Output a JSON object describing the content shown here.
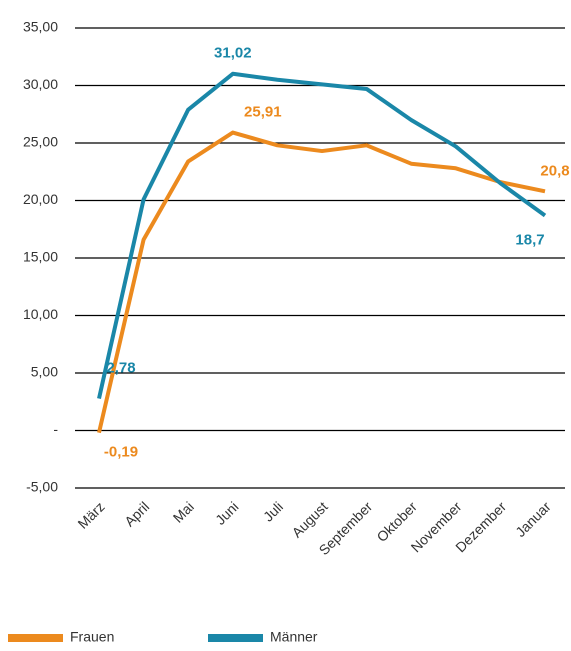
{
  "chart_data": {
    "type": "line",
    "categories": [
      "März",
      "April",
      "Mai",
      "Juni",
      "Juli",
      "August",
      "September",
      "Oktober",
      "November",
      "Dezember",
      "Januar"
    ],
    "series": [
      {
        "name": "Frauen",
        "color": "#ec8a1e",
        "values": [
          -0.19,
          16.6,
          23.4,
          25.91,
          24.8,
          24.3,
          24.8,
          23.2,
          22.8,
          21.6,
          20.8
        ],
        "value_labels": [
          "-0,19",
          null,
          null,
          "25,91",
          null,
          null,
          null,
          null,
          null,
          null,
          "20,8"
        ]
      },
      {
        "name": "Männer",
        "color": "#1a87a8",
        "values": [
          2.78,
          20.1,
          27.9,
          31.02,
          30.5,
          30.1,
          29.7,
          27.0,
          24.7,
          21.5,
          18.7
        ],
        "value_labels": [
          "2,78",
          null,
          null,
          "31,02",
          null,
          null,
          null,
          null,
          null,
          null,
          "18,7"
        ]
      }
    ],
    "ylim": [
      -5,
      35
    ],
    "yticks": [
      {
        "value": -5,
        "label": "-5,00"
      },
      {
        "value": 0,
        "label": "-"
      },
      {
        "value": 5,
        "label": "5,00"
      },
      {
        "value": 10,
        "label": "10,00"
      },
      {
        "value": 15,
        "label": "15,00"
      },
      {
        "value": 20,
        "label": "20,00"
      },
      {
        "value": 25,
        "label": "25,00"
      },
      {
        "value": 30,
        "label": "30,00"
      },
      {
        "value": 35,
        "label": "35,00"
      }
    ],
    "grid": true,
    "legend": "bottom"
  }
}
